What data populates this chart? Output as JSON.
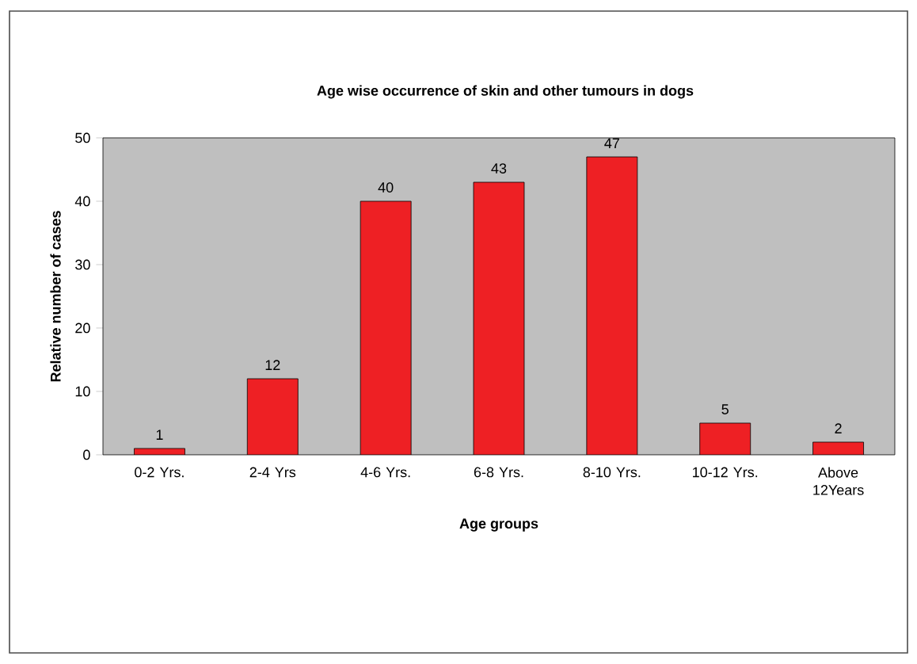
{
  "chart_data": {
    "type": "bar",
    "title": "Age wise occurrence of skin and other tumours in dogs",
    "xlabel": "Age groups",
    "ylabel": "Relative number of cases",
    "categories": [
      "0-2 Yrs.",
      "2-4 Yrs",
      "4-6 Yrs.",
      "6-8 Yrs.",
      "8-10 Yrs.",
      "10-12 Yrs.",
      "Above 12Years"
    ],
    "values": [
      1,
      12,
      40,
      43,
      47,
      5,
      2
    ],
    "color": "#ee2024",
    "ylim": [
      0,
      50
    ],
    "yticks": [
      0,
      10,
      20,
      30,
      40,
      50
    ],
    "grid": false,
    "data_labels": true
  }
}
